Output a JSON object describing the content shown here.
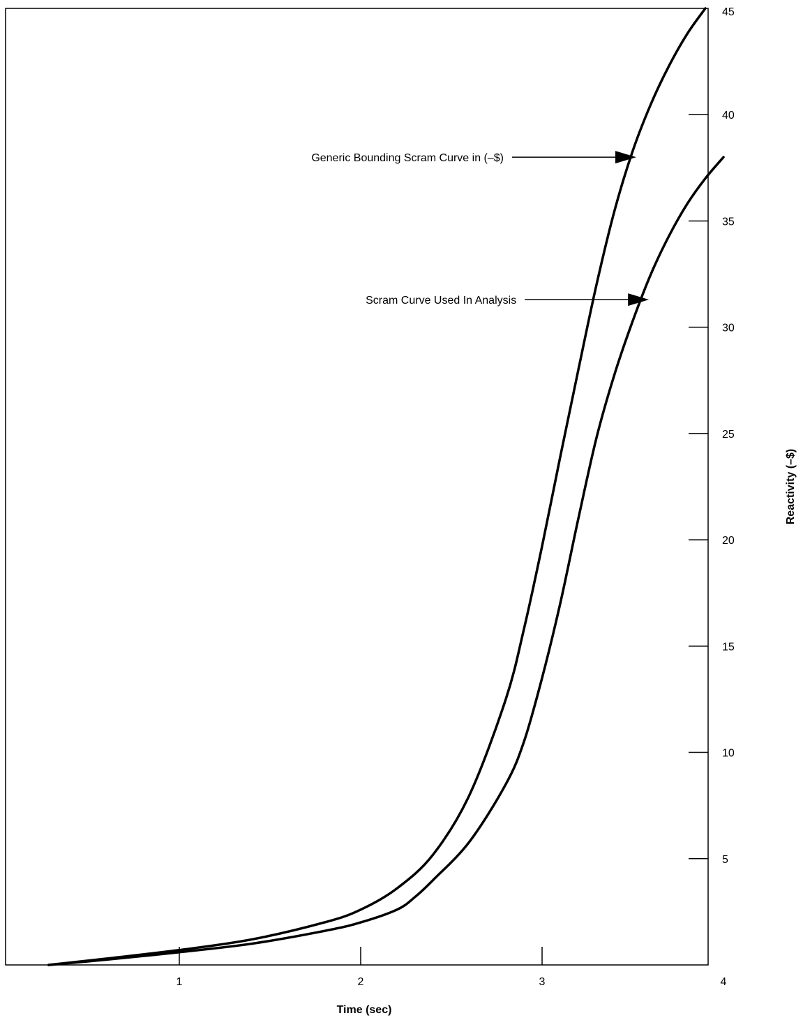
{
  "chart_data": {
    "type": "line",
    "title": "",
    "xlabel": "Time (sec)",
    "ylabel": "Reactivity (–$)",
    "xlim": [
      0,
      4
    ],
    "ylim": [
      0,
      45
    ],
    "x_ticks": [
      1,
      2,
      3,
      4
    ],
    "y_ticks": [
      5,
      10,
      15,
      20,
      25,
      30,
      35,
      40,
      45
    ],
    "y_axis_side": "right",
    "grid": false,
    "series": [
      {
        "x": [
          0.28,
          0.6,
          1.0,
          1.4,
          1.8,
          2.0,
          2.2,
          2.4,
          2.6,
          2.8,
          2.9,
          3.0,
          3.1,
          3.2,
          3.3,
          3.4,
          3.5,
          3.6,
          3.7,
          3.8,
          3.9
        ],
        "y": [
          0.0,
          0.3,
          0.7,
          1.2,
          2.0,
          2.6,
          3.6,
          5.2,
          8.0,
          12.5,
          15.8,
          19.7,
          23.9,
          28.0,
          32.0,
          35.5,
          38.3,
          40.5,
          42.3,
          43.8,
          45.0
        ]
      },
      {
        "x": [
          0.28,
          0.6,
          1.0,
          1.4,
          1.8,
          2.0,
          2.2,
          2.3,
          2.4,
          2.6,
          2.8,
          2.9,
          3.0,
          3.1,
          3.2,
          3.3,
          3.4,
          3.5,
          3.6,
          3.7,
          3.8,
          3.9,
          4.0
        ],
        "y": [
          0.0,
          0.25,
          0.6,
          1.0,
          1.6,
          2.0,
          2.6,
          3.2,
          4.0,
          5.8,
          8.5,
          10.5,
          13.5,
          17.0,
          21.0,
          24.8,
          27.8,
          30.3,
          32.5,
          34.3,
          35.8,
          37.0,
          38.0
        ]
      }
    ],
    "annotations": [
      {
        "text": "Generic Bounding Scram Curve in (–$)",
        "x": 3.55,
        "y": 38.0
      },
      {
        "text": "Scram Curve Used In Analysis",
        "x": 3.62,
        "y": 31.3
      }
    ]
  }
}
